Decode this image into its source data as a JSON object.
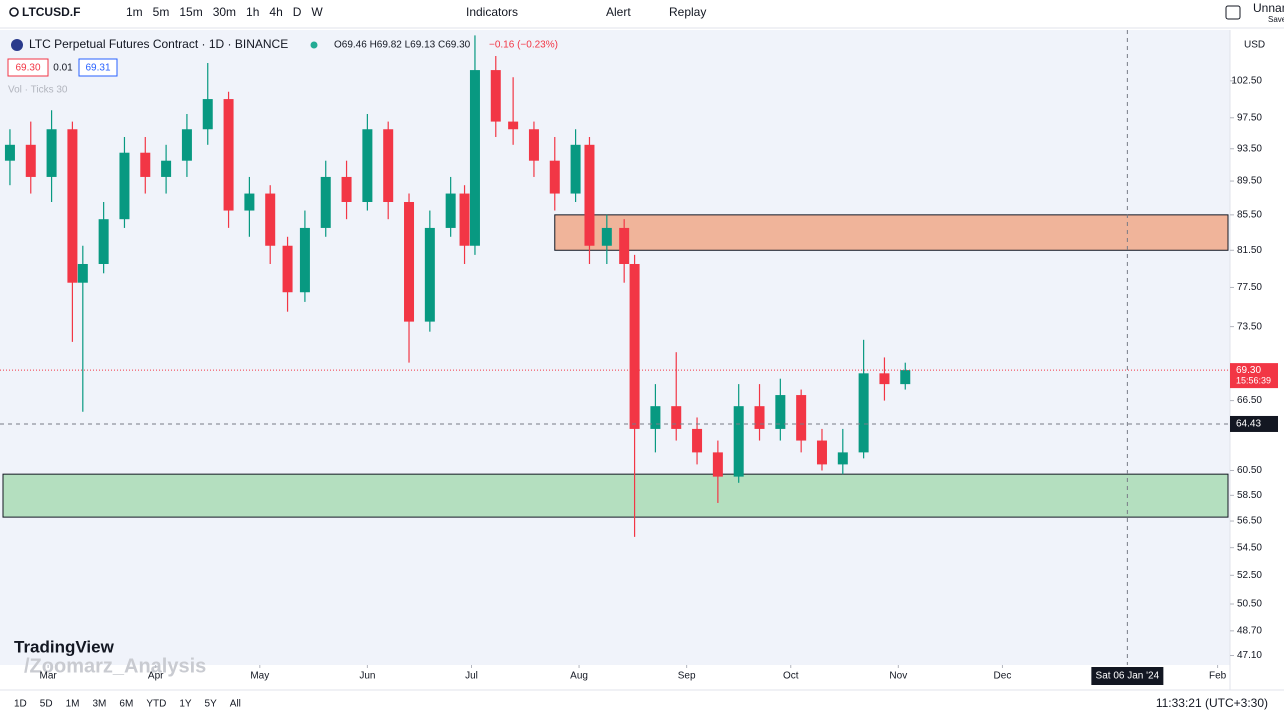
{
  "toolbar": {
    "symbol": "LTCUSD.F",
    "intervals": [
      "1m",
      "5m",
      "15m",
      "30m",
      "1h",
      "4h",
      "D",
      "W"
    ],
    "indicators": "Indicators",
    "alert": "Alert",
    "replay": "Replay",
    "layout_name": "Unnamed",
    "save": "Save"
  },
  "legend": {
    "title": "LTC Perpetual Futures Contract · 1D · BINANCE",
    "ohlc": "O69.46 H69.82 L69.13 C69.30",
    "change": "−0.16 (−0.23%)",
    "bid": "69.30",
    "spread": "0.01",
    "ask": "69.31",
    "volume": "Vol · Ticks 30"
  },
  "chart_data": {
    "type": "candlestick",
    "currency": "USD",
    "log_scale": true,
    "up_color": "#089981",
    "down_color": "#f23645",
    "x": [
      -11,
      -5,
      1,
      7,
      10,
      16,
      22,
      28,
      34,
      40,
      46,
      52,
      58,
      64,
      69,
      74,
      80,
      86,
      92,
      98,
      104,
      110,
      116,
      120,
      123,
      129,
      134,
      140,
      146,
      152,
      156,
      161,
      166,
      169,
      175,
      181,
      187,
      193,
      199,
      205,
      211,
      217,
      223,
      229,
      235,
      241,
      247
    ],
    "open": [
      92,
      94,
      90,
      96,
      78,
      80,
      85,
      93,
      90,
      92,
      96,
      100,
      86,
      88,
      82,
      77,
      84,
      90,
      87,
      96,
      87,
      74,
      84,
      88,
      82,
      104,
      97,
      96,
      92,
      88,
      94,
      82,
      84,
      80,
      64,
      66,
      64,
      62,
      60,
      66,
      64,
      67,
      63,
      61,
      62,
      69,
      68
    ],
    "high": [
      96,
      97,
      98.5,
      97,
      82,
      87,
      95,
      95,
      94,
      98,
      105,
      101,
      90,
      89,
      83,
      86,
      92,
      92,
      98,
      97,
      88,
      86,
      90,
      89,
      109,
      106,
      103,
      97,
      95,
      96,
      95,
      85.5,
      85,
      81,
      68,
      71,
      65,
      63,
      68,
      68,
      68.5,
      67.5,
      64,
      64,
      72.2,
      70.5,
      70
    ],
    "low": [
      89,
      88,
      87,
      72,
      65.5,
      79,
      84,
      88,
      88,
      90,
      94,
      84,
      83,
      80,
      75,
      76,
      83,
      85,
      86,
      85,
      70,
      73,
      83,
      80,
      81,
      95,
      94,
      90,
      86,
      87,
      80,
      80,
      78,
      55.3,
      62,
      63,
      61,
      57.9,
      59.5,
      63,
      63,
      62,
      60.5,
      60.2,
      61.5,
      66.5,
      67.5
    ],
    "close": [
      94,
      90,
      96,
      78,
      80,
      85,
      93,
      90,
      92,
      96,
      100,
      86,
      88,
      82,
      77,
      84,
      90,
      87,
      96,
      87,
      74,
      84,
      88,
      82,
      104,
      97,
      96,
      92,
      88,
      94,
      82,
      84,
      80,
      64,
      66,
      64,
      62,
      60,
      66,
      64,
      67,
      63,
      61,
      62,
      69,
      68,
      69.3
    ],
    "xlim": [
      -13,
      340
    ],
    "xticks": [
      {
        "value": 0,
        "label": "Mar"
      },
      {
        "value": 31,
        "label": "Apr"
      },
      {
        "value": 61,
        "label": "May"
      },
      {
        "value": 92,
        "label": "Jun"
      },
      {
        "value": 122,
        "label": "Jul"
      },
      {
        "value": 153,
        "label": "Aug"
      },
      {
        "value": 184,
        "label": "Sep"
      },
      {
        "value": 214,
        "label": "Oct"
      },
      {
        "value": 245,
        "label": "Nov"
      },
      {
        "value": 275,
        "label": "Dec"
      },
      {
        "value": 337,
        "label": "Feb"
      }
    ],
    "ylim": [
      46.5,
      109.5
    ],
    "yticks": [
      {
        "value": 102.5,
        "label": "102.50"
      },
      {
        "value": 97.5,
        "label": "97.50"
      },
      {
        "value": 93.5,
        "label": "93.50"
      },
      {
        "value": 89.5,
        "label": "89.50"
      },
      {
        "value": 85.5,
        "label": "85.50"
      },
      {
        "value": 81.5,
        "label": "81.50"
      },
      {
        "value": 77.5,
        "label": "77.50"
      },
      {
        "value": 73.5,
        "label": "73.50"
      },
      {
        "value": 66.5,
        "label": "66.50"
      },
      {
        "value": 60.5,
        "label": "60.50"
      },
      {
        "value": 58.5,
        "label": "58.50"
      },
      {
        "value": 56.5,
        "label": "56.50"
      },
      {
        "value": 54.5,
        "label": "54.50"
      },
      {
        "value": 52.5,
        "label": "52.50"
      },
      {
        "value": 50.5,
        "label": "50.50"
      },
      {
        "value": 48.7,
        "label": "48.70"
      },
      {
        "value": 47.1,
        "label": "47.10"
      }
    ],
    "zones": [
      {
        "color": "#f0b49a",
        "low": 81.5,
        "high": 85.5,
        "from": 146
      },
      {
        "color": "#b4dfbf",
        "low": 56.8,
        "high": 60.2,
        "from": -13
      }
    ],
    "last_price": {
      "value": 69.3,
      "label": "69.30"
    },
    "countdown": "15:56:39",
    "crosshair": {
      "x": {
        "value": 311,
        "label": "Sat 06 Jan '24"
      },
      "y": 64.43
    }
  },
  "watermark": {
    "brand": "TradingView",
    "author": "/Zoomarz_Analysis"
  },
  "bottom_bar": {
    "ranges": [
      "1D",
      "5D",
      "1M",
      "3M",
      "6M",
      "YTD",
      "1Y",
      "5Y",
      "All"
    ],
    "clock": "11:33:21 (UTC+3:30)"
  }
}
